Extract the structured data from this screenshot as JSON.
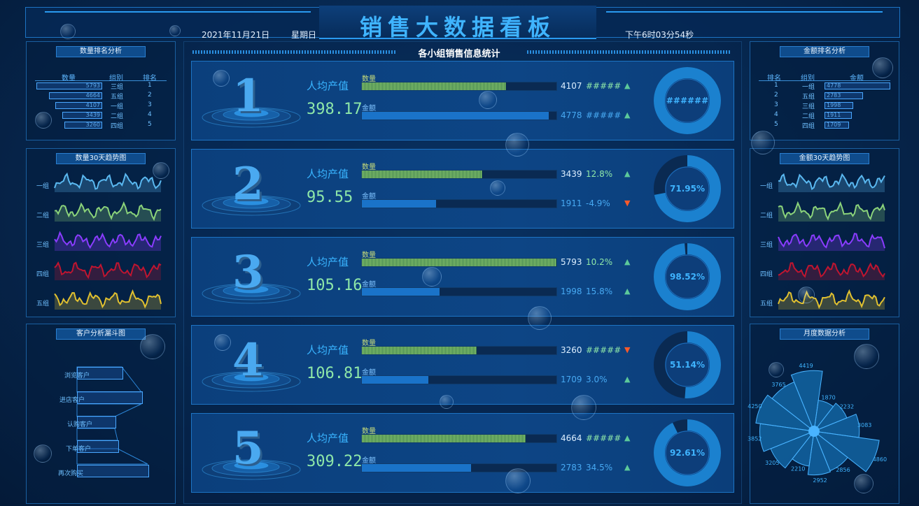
{
  "header": {
    "title": "销售大数据看板",
    "date": "2021年11月21日",
    "weekday": "星期日",
    "time": "下午6时03分54秒"
  },
  "left": {
    "count_rank": {
      "title": "数量排名分析",
      "headers": [
        "数量",
        "组别",
        "排名"
      ],
      "rows": [
        {
          "value": "5793",
          "group": "三组",
          "rank": "1",
          "fraction": 1.0
        },
        {
          "value": "4664",
          "group": "五组",
          "rank": "2",
          "fraction": 0.805
        },
        {
          "value": "4107",
          "group": "一组",
          "rank": "3",
          "fraction": 0.709
        },
        {
          "value": "3439",
          "group": "二组",
          "rank": "4",
          "fraction": 0.594
        },
        {
          "value": "3260",
          "group": "四组",
          "rank": "5",
          "fraction": 0.563
        }
      ]
    },
    "count_trend": {
      "title": "数量30天趋势图",
      "groups": [
        {
          "label": "一组",
          "color": "#5ab8f0"
        },
        {
          "label": "二组",
          "color": "#8bd37a"
        },
        {
          "label": "三组",
          "color": "#8a3cff"
        },
        {
          "label": "四组",
          "color": "#c01530"
        },
        {
          "label": "五组",
          "color": "#e0c030"
        }
      ]
    },
    "funnel": {
      "title": "客户分析漏斗图",
      "stages": [
        "浏览客户",
        "进店客户",
        "认购客户",
        "下单客户",
        "再次购买"
      ]
    }
  },
  "center": {
    "title": "各小组销售信息统计",
    "per_capita_label": "人均产值",
    "qty_label": "数量",
    "amt_label": "金额",
    "rows": [
      {
        "rank": "1",
        "per_capita": "398.17",
        "qty": "4107",
        "qty_pct": "#####",
        "qty_trend": "up",
        "qty_fill": 0.74,
        "amt": "4778",
        "amt_pct": "#####",
        "amt_trend": "up",
        "amt_fill": 0.96,
        "donut": "######",
        "donut_frac": 0.999
      },
      {
        "rank": "2",
        "per_capita": "95.55",
        "qty": "3439",
        "qty_pct": "12.8%",
        "qty_trend": "up",
        "qty_fill": 0.62,
        "amt": "1911",
        "amt_pct": "-4.9%",
        "amt_trend": "down",
        "amt_fill": 0.38,
        "donut": "71.95%",
        "donut_frac": 0.7195
      },
      {
        "rank": "3",
        "per_capita": "105.16",
        "qty": "5793",
        "qty_pct": "10.2%",
        "qty_trend": "up",
        "qty_fill": 1.0,
        "amt": "1998",
        "amt_pct": "15.8%",
        "amt_trend": "up",
        "amt_fill": 0.4,
        "donut": "98.52%",
        "donut_frac": 0.9852
      },
      {
        "rank": "4",
        "per_capita": "106.81",
        "qty": "3260",
        "qty_pct": "#####",
        "qty_trend": "down",
        "qty_fill": 0.59,
        "amt": "1709",
        "amt_pct": "3.0%",
        "amt_trend": "up",
        "amt_fill": 0.34,
        "donut": "51.14%",
        "donut_frac": 0.5114
      },
      {
        "rank": "5",
        "per_capita": "309.22",
        "qty": "4664",
        "qty_pct": "#####",
        "qty_trend": "up",
        "qty_fill": 0.84,
        "amt": "2783",
        "amt_pct": "34.5%",
        "amt_trend": "up",
        "amt_fill": 0.56,
        "donut": "92.61%",
        "donut_frac": 0.9261
      }
    ]
  },
  "right": {
    "amount_rank": {
      "title": "金额排名分析",
      "headers": [
        "排名",
        "组别",
        "金额"
      ],
      "rows": [
        {
          "rank": "1",
          "group": "一组",
          "value": "4778",
          "fraction": 1.0
        },
        {
          "rank": "2",
          "group": "五组",
          "value": "2783",
          "fraction": 0.58
        },
        {
          "rank": "3",
          "group": "三组",
          "value": "1998",
          "fraction": 0.42
        },
        {
          "rank": "4",
          "group": "二组",
          "value": "1911",
          "fraction": 0.4
        },
        {
          "rank": "5",
          "group": "四组",
          "value": "1709",
          "fraction": 0.36
        }
      ]
    },
    "amount_trend": {
      "title": "金额30天趋势图",
      "groups": [
        {
          "label": "一组",
          "color": "#5ab8f0"
        },
        {
          "label": "二组",
          "color": "#8bd37a"
        },
        {
          "label": "三组",
          "color": "#8a3cff"
        },
        {
          "label": "四组",
          "color": "#c01530"
        },
        {
          "label": "五组",
          "color": "#e0c030"
        }
      ]
    },
    "monthly": {
      "title": "月度数据分析",
      "values": [
        "4419",
        "1870",
        "2232",
        "3083",
        "4860",
        "2856",
        "2952",
        "2210",
        "3205",
        "3852",
        "4250",
        "3765"
      ]
    }
  }
}
